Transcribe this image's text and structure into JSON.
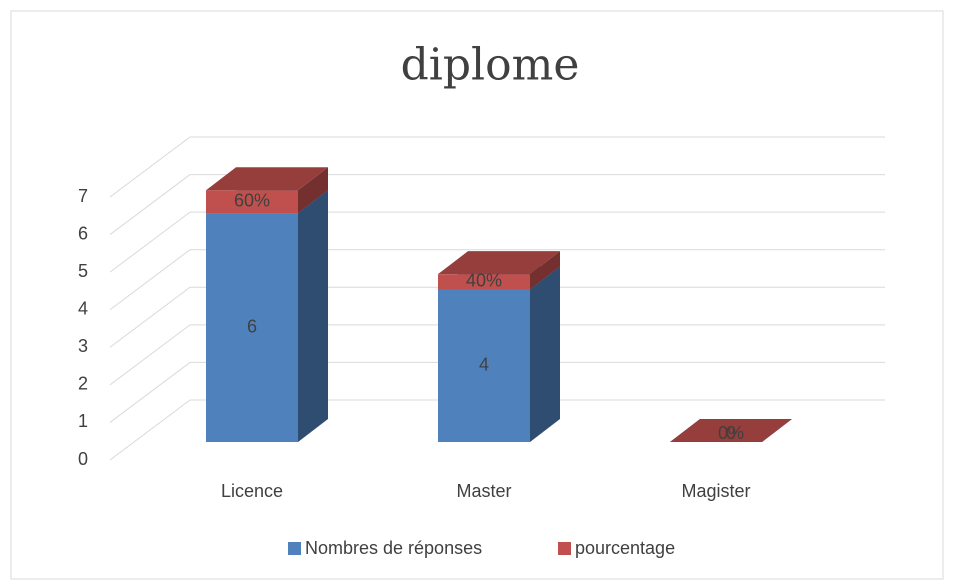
{
  "chart_data": {
    "type": "bar3d_stacked",
    "title": "diplome",
    "categories": [
      "Licence",
      "Master",
      "Magister"
    ],
    "series": [
      {
        "name": "Nombres de réponses",
        "color": "#4f81bd",
        "values": [
          6,
          4,
          0
        ]
      },
      {
        "name": "pourcentage",
        "color": "#c0504d",
        "values": [
          0.6,
          0.4,
          0
        ],
        "value_labels": [
          "60%",
          "40%",
          "0%"
        ]
      }
    ],
    "ylim": [
      0,
      7
    ],
    "yticks": [
      0,
      1,
      2,
      3,
      4,
      5,
      6,
      7
    ],
    "grid": true
  }
}
